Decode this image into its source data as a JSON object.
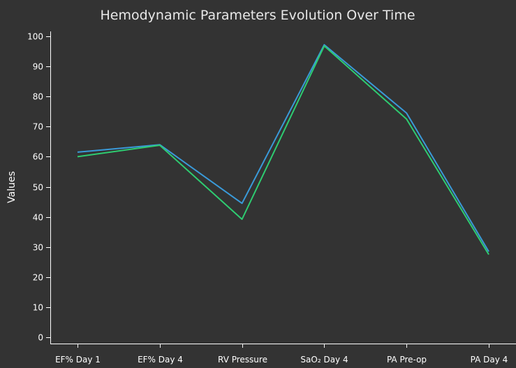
{
  "chart_data": {
    "type": "line",
    "title": "Hemodynamic Parameters Evolution Over Time",
    "xlabel": "",
    "ylabel": "Values",
    "categories": [
      "EF% Day 1",
      "EF% Day 4",
      "RV Pressure",
      "SaO₂ Day 4",
      "PA Pre-op",
      "PA Day 4"
    ],
    "ylim": [
      0,
      100
    ],
    "yticks": [
      0,
      10,
      20,
      30,
      40,
      50,
      60,
      70,
      80,
      90,
      100
    ],
    "grid": false,
    "legend": "none",
    "series": [
      {
        "color": "#3a9ad9",
        "values": [
          61.5,
          64,
          44.5,
          97.2,
          74.5,
          28.5
        ]
      },
      {
        "color": "#2ecc71",
        "values": [
          60,
          63.8,
          39.2,
          96.8,
          72.5,
          27.5
        ]
      }
    ]
  }
}
